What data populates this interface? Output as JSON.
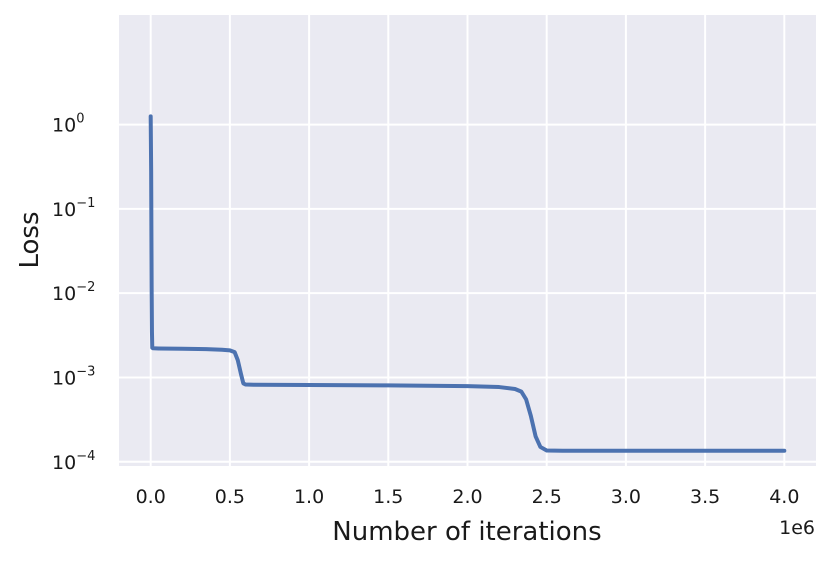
{
  "chart_data": {
    "type": "line",
    "title": "",
    "xlabel": "Number of iterations",
    "ylabel": "Loss",
    "x_offset_text": "1e6",
    "xscale": "linear",
    "yscale": "log",
    "xlim": [
      -0.2,
      4.2
    ],
    "ylim_exponent": [
      -4.05,
      1.3
    ],
    "grid": true,
    "legend": "none",
    "colors": {
      "background": "#eaeaf2",
      "grid": "#ffffff",
      "line": "#4c72b0"
    },
    "x_ticks": [
      {
        "value": 0.0,
        "label": "0.0"
      },
      {
        "value": 0.5,
        "label": "0.5"
      },
      {
        "value": 1.0,
        "label": "1.0"
      },
      {
        "value": 1.5,
        "label": "1.5"
      },
      {
        "value": 2.0,
        "label": "2.0"
      },
      {
        "value": 2.5,
        "label": "2.5"
      },
      {
        "value": 3.0,
        "label": "3.0"
      },
      {
        "value": 3.5,
        "label": "3.5"
      },
      {
        "value": 4.0,
        "label": "4.0"
      }
    ],
    "y_ticks": [
      {
        "exponent": 0,
        "label": "10",
        "sup": "0"
      },
      {
        "exponent": -1,
        "label": "10",
        "sup": "−1"
      },
      {
        "exponent": -2,
        "label": "10",
        "sup": "−2"
      },
      {
        "exponent": -3,
        "label": "10",
        "sup": "−3"
      },
      {
        "exponent": -4,
        "label": "10",
        "sup": "−4"
      }
    ],
    "series": [
      {
        "x": [
          0.0,
          0.003,
          0.006,
          0.008,
          0.01,
          0.015,
          0.05,
          0.2,
          0.35,
          0.45,
          0.5,
          0.53,
          0.55,
          0.57,
          0.585,
          0.6,
          0.65,
          1.0,
          1.5,
          2.0,
          2.2,
          2.3,
          2.34,
          2.37,
          2.4,
          2.43,
          2.46,
          2.5,
          2.6,
          3.0,
          3.5,
          4.0
        ],
        "y": [
          1.25,
          0.28,
          0.012,
          0.0035,
          0.00225,
          0.00222,
          0.00221,
          0.00219,
          0.00217,
          0.00213,
          0.0021,
          0.002,
          0.0016,
          0.0011,
          0.00085,
          0.000825,
          0.00082,
          0.000815,
          0.000805,
          0.00079,
          0.00077,
          0.00073,
          0.00068,
          0.00055,
          0.00035,
          0.0002,
          0.00015,
          0.000136,
          0.000135,
          0.000135,
          0.000135,
          0.000135
        ]
      }
    ]
  }
}
